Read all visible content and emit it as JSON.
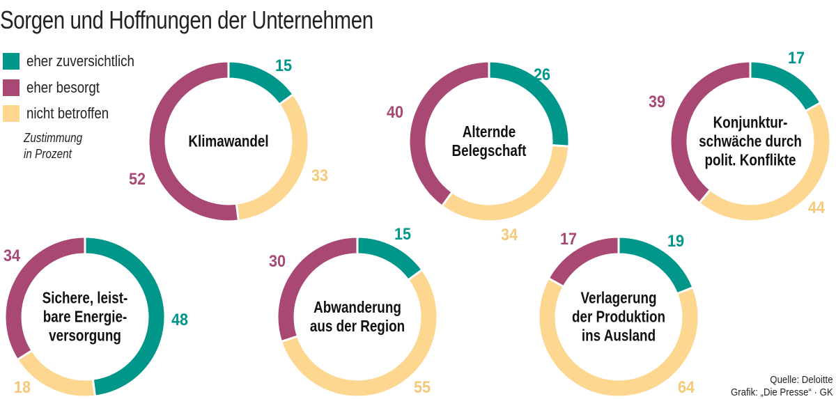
{
  "title": "Sorgen und Hoffnungen der Unternehmen",
  "legend": [
    {
      "label": "eher zuversichtlich",
      "color": "#00968a"
    },
    {
      "label": "eher besorgt",
      "color": "#a84873"
    },
    {
      "label": "nicht betroffen",
      "color": "#fdd690"
    }
  ],
  "note": [
    "Zustimmung",
    "in Prozent"
  ],
  "source": [
    "Quelle: Deloitte",
    "Grafik: „Die Presse“ · GK"
  ],
  "chart_data": [
    {
      "type": "pie",
      "donut": true,
      "title_lines": [
        "Klimawandel"
      ],
      "categories": [
        "eher zuversichtlich",
        "nicht betroffen",
        "eher besorgt"
      ],
      "values": [
        15,
        33,
        52
      ]
    },
    {
      "type": "pie",
      "donut": true,
      "title_lines": [
        "Alternde",
        "Belegschaft"
      ],
      "categories": [
        "eher zuversichtlich",
        "nicht betroffen",
        "eher besorgt"
      ],
      "values": [
        26,
        34,
        40
      ]
    },
    {
      "type": "pie",
      "donut": true,
      "title_lines": [
        "Konjunktur-",
        "schwäche durch",
        "polit. Konflikte"
      ],
      "categories": [
        "eher zuversichtlich",
        "nicht betroffen",
        "eher besorgt"
      ],
      "values": [
        17,
        44,
        39
      ]
    },
    {
      "type": "pie",
      "donut": true,
      "title_lines": [
        "Sichere, leist-",
        "bare Energie-",
        "versorgung"
      ],
      "categories": [
        "eher zuversichtlich",
        "nicht betroffen",
        "eher besorgt"
      ],
      "values": [
        48,
        18,
        34
      ]
    },
    {
      "type": "pie",
      "donut": true,
      "title_lines": [
        "Abwanderung",
        "aus der Region"
      ],
      "categories": [
        "eher zuversichtlich",
        "nicht betroffen",
        "eher besorgt"
      ],
      "values": [
        15,
        55,
        30
      ]
    },
    {
      "type": "pie",
      "donut": true,
      "title_lines": [
        "Verlagerung",
        "der Produktion",
        "ins Ausland"
      ],
      "categories": [
        "eher zuversichtlich",
        "nicht betroffen",
        "eher besorgt"
      ],
      "values": [
        19,
        64,
        17
      ]
    }
  ]
}
